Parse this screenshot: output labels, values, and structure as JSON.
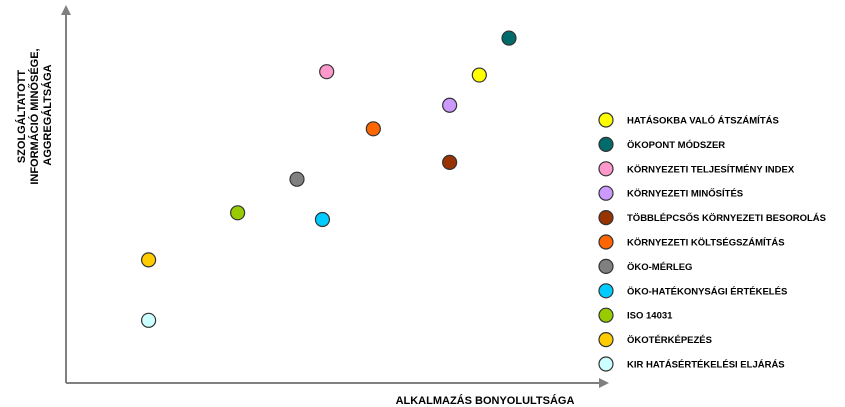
{
  "chart_data": {
    "type": "scatter",
    "title": "",
    "xlabel": "ALKALMAZÁS BONYOLULTSÁGA",
    "ylabel_lines": [
      "SZOLGÁLTATOTT",
      "INFORMÁCIÓ MINŐSÉGE,",
      "AGGREGÁLTSÁGA"
    ],
    "xlim": [
      0,
      100
    ],
    "ylim": [
      0,
      100
    ],
    "grid": false,
    "legend_position": "right",
    "series": [
      {
        "name": "HATÁSOKBA VALÓ ÁTSZÁMÍTÁS",
        "color": "#ffff00",
        "x": 93,
        "y": 86
      },
      {
        "name": "ÖKOPONT MÓDSZER",
        "color": "#006b6b",
        "x": 100,
        "y": 97
      },
      {
        "name": "KÖRNYEZETI TELJESÍTMÉNY INDEX",
        "color": "#ff99cc",
        "x": 57,
        "y": 87
      },
      {
        "name": "KÖRNYEZETI MINŐSÍTÉS",
        "color": "#cc99ff",
        "x": 86,
        "y": 77
      },
      {
        "name": "TÖBBLÉPCSŐS KÖRNYEZETI BESOROLÁS",
        "color": "#993300",
        "x": 86,
        "y": 60
      },
      {
        "name": "KÖRNYEZETI KÖLTSÉGSZÁMÍTÁS",
        "color": "#ff6600",
        "x": 68,
        "y": 70
      },
      {
        "name": "ÖKO-MÉRLEG",
        "color": "#808080",
        "x": 50,
        "y": 55
      },
      {
        "name": "ÖKO-HATÉKONYSÁGI ÉRTÉKELÉS",
        "color": "#00ccff",
        "x": 56,
        "y": 43
      },
      {
        "name": "ISO 14031",
        "color": "#99cc00",
        "x": 36,
        "y": 45
      },
      {
        "name": "ÖKOTÉRKÉPEZÉS",
        "color": "#ffcc00",
        "x": 15,
        "y": 31
      },
      {
        "name": "KIR HATÁSÉRTÉKELÉSI ELJÁRÁS",
        "color": "#ccffff",
        "x": 15,
        "y": 13
      }
    ]
  }
}
